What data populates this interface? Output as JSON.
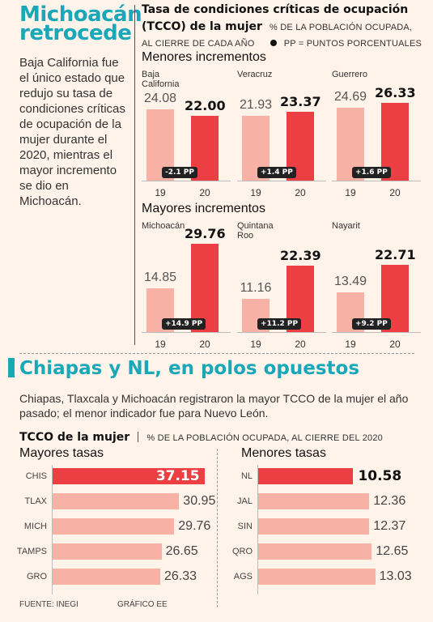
{
  "left_title_1": "Michoacán",
  "left_title_2": "retrocede",
  "intro_text": "Baja California fue el único estado que redujo su tasa de condiciones críticas de ocupación de la mujer durante el 2020, mientras el mayor incremento se dio en Michoacán.",
  "chart_header": {
    "title_1": "Tasa de condiciones críticas de ocupación",
    "title_2": "(TCCO) de la mujer",
    "note_1": "% DE LA POBLACIÓN OCUPADA,",
    "note_2": "AL CIERRE DE CADA AÑO",
    "note_3": "PP = PUNTOS PORCENTUALES"
  },
  "section2": {
    "title": "Chiapas y NL, en polos opuestos",
    "body": "Chiapas, Tlaxcala y Michoacán registraron la mayor TCCO de la mujer el año pasado; el menor indicador fue para Nuevo León.",
    "chart_title": "TCCO de la mujer",
    "chart_note": "% DE LA POBLACIÓN OCUPADA, AL CIERRE DEL 2020"
  },
  "footer": {
    "source": "FUENTE: INEGI",
    "credit": "GRÁFICO EE"
  },
  "colors": {
    "accent": "#1aa8b8",
    "bar_2019": "#f8b1a5",
    "bar_2020": "#ec3f44"
  },
  "chart_data": [
    {
      "type": "bar",
      "title": "Menores incrementos",
      "categories": [
        "19",
        "20"
      ],
      "panels": [
        {
          "state": "Baja California",
          "values": [
            24.08,
            22.0
          ],
          "labels": [
            "24.08",
            "22.00"
          ],
          "change": "-2.1 PP"
        },
        {
          "state": "Veracruz",
          "values": [
            21.93,
            23.37
          ],
          "labels": [
            "21.93",
            "23.37"
          ],
          "change": "+1.4 PP"
        },
        {
          "state": "Guerrero",
          "values": [
            24.69,
            26.33
          ],
          "labels": [
            "24.69",
            "26.33"
          ],
          "change": "+1.6 PP"
        }
      ]
    },
    {
      "type": "bar",
      "title": "Mayores incrementos",
      "categories": [
        "19",
        "20"
      ],
      "panels": [
        {
          "state": "Michoacán",
          "values": [
            14.85,
            29.76
          ],
          "labels": [
            "14.85",
            "29.76"
          ],
          "change": "+14.9 PP"
        },
        {
          "state": "Quintana Roo",
          "values": [
            11.16,
            22.39
          ],
          "labels": [
            "11.16",
            "22.39"
          ],
          "change": "+11.2 PP"
        },
        {
          "state": "Nayarit",
          "values": [
            13.49,
            22.71
          ],
          "labels": [
            "13.49",
            "22.71"
          ],
          "change": "+9.2 PP"
        }
      ]
    },
    {
      "type": "bar",
      "title": "Mayores tasas",
      "categories": [
        "CHIS",
        "TLAX",
        "MICH",
        "TAMPS",
        "GRO"
      ],
      "values": [
        37.15,
        30.95,
        29.76,
        26.65,
        26.33
      ],
      "labels": [
        "37.15",
        "30.95",
        "29.76",
        "26.65",
        "26.33"
      ]
    },
    {
      "type": "bar",
      "title": "Menores tasas",
      "categories": [
        "NL",
        "JAL",
        "SIN",
        "QRO",
        "AGS"
      ],
      "values": [
        10.58,
        12.36,
        12.37,
        12.65,
        13.03
      ],
      "labels": [
        "10.58",
        "12.36",
        "12.37",
        "12.65",
        "13.03"
      ]
    }
  ]
}
